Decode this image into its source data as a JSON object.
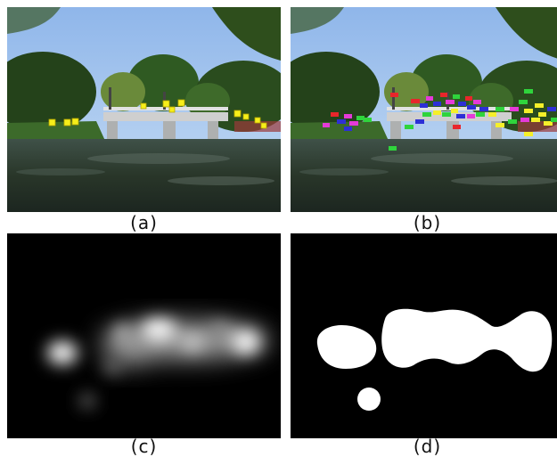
{
  "panels": [
    {
      "id": "a",
      "caption": "(a)"
    },
    {
      "id": "b",
      "caption": "(b)"
    },
    {
      "id": "c",
      "caption": "(c)"
    },
    {
      "id": "d",
      "caption": "(d)"
    }
  ],
  "colors": {
    "sky": "#a9c8ee",
    "foliage": "#2f5a1f",
    "water": "#2e3b33",
    "marker_yellow": "#f6ee1a",
    "tag_red": "#e8262b",
    "tag_blue": "#2d2fd6",
    "tag_green": "#2fd43c",
    "tag_magenta": "#e53ad8",
    "tag_yellow": "#f5ef2a"
  }
}
